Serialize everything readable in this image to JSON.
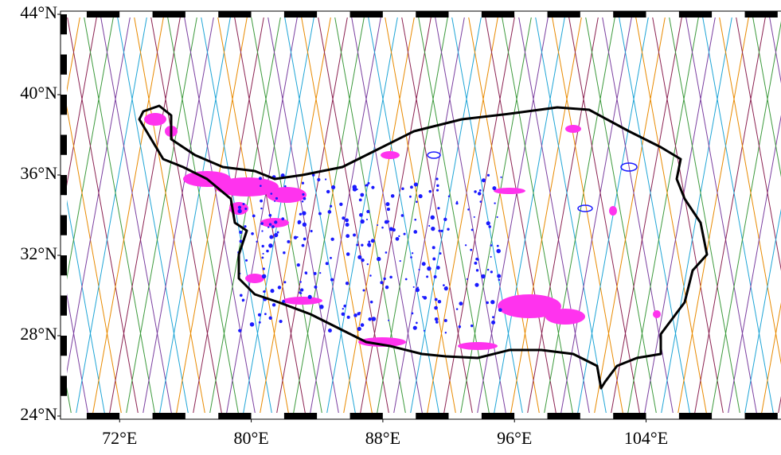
{
  "chart_data": {
    "type": "map",
    "xlim": [
      68.6,
      112.2
    ],
    "ylim": [
      24,
      44
    ],
    "xticks": [
      {
        "value": 72,
        "label": "72°E"
      },
      {
        "value": 80,
        "label": "80°E"
      },
      {
        "value": 88,
        "label": "88°E"
      },
      {
        "value": 96,
        "label": "96°E"
      },
      {
        "value": 104,
        "label": "104°E"
      }
    ],
    "yticks": [
      {
        "value": 24,
        "label": "24°N"
      },
      {
        "value": 28,
        "label": "28°N"
      },
      {
        "value": 32,
        "label": "32°N"
      },
      {
        "value": 36,
        "label": "36°N"
      },
      {
        "value": 40,
        "label": "40°N"
      },
      {
        "value": 44,
        "label": "44°N"
      }
    ]
  }
}
